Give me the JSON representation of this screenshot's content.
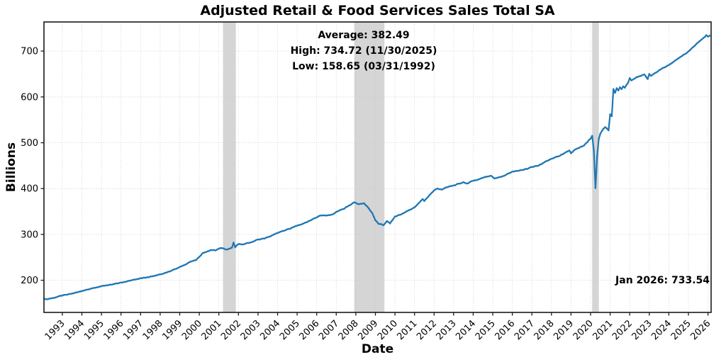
{
  "chart_data": {
    "type": "line",
    "title": "Adjusted Retail & Food Services Sales Total SA",
    "xlabel": "Date",
    "ylabel": "Billions",
    "x_ticks": [
      1993,
      1994,
      1995,
      1996,
      1997,
      1998,
      1999,
      2000,
      2001,
      2002,
      2003,
      2004,
      2005,
      2006,
      2007,
      2008,
      2009,
      2010,
      2011,
      2012,
      2013,
      2014,
      2015,
      2016,
      2017,
      2018,
      2019,
      2020,
      2021,
      2022,
      2023,
      2024,
      2025,
      2026
    ],
    "y_ticks": [
      200,
      300,
      400,
      500,
      600,
      700
    ],
    "xlim": [
      1992.06,
      2026.16
    ],
    "ylim": [
      129.8,
      763.5
    ],
    "grid": {
      "style": "dotted",
      "color": "#c9c9c9"
    },
    "line_color": "#1f77b4",
    "band_color": "#d5d5d5",
    "spine_color": "#1a1a1a",
    "recession_bands": [
      [
        2001.21,
        2001.87
      ],
      [
        2007.92,
        2009.46
      ],
      [
        2020.08,
        2020.42
      ]
    ],
    "series": [
      {
        "name": "Adjusted Retail & Food Services Sales Total SA (billions, monthly)",
        "sampling": "monthly",
        "jitter": 0.8,
        "anchor_points": [
          [
            1992.08,
            159.6
          ],
          [
            1992.25,
            158.65
          ],
          [
            1992.33,
            159.8
          ],
          [
            1992.5,
            161.2
          ],
          [
            1992.75,
            163.8
          ],
          [
            1993.0,
            166.5
          ],
          [
            1993.25,
            168.5
          ],
          [
            1993.5,
            171
          ],
          [
            1993.75,
            173.5
          ],
          [
            1994.0,
            176.5
          ],
          [
            1994.25,
            179.5
          ],
          [
            1994.5,
            182
          ],
          [
            1994.75,
            184.5
          ],
          [
            1995.0,
            187
          ],
          [
            1995.3,
            189
          ],
          [
            1995.6,
            191
          ],
          [
            1996.0,
            195
          ],
          [
            1996.3,
            198
          ],
          [
            1996.6,
            200.5
          ],
          [
            1997.0,
            204.5
          ],
          [
            1997.3,
            206.5
          ],
          [
            1997.6,
            208.5
          ],
          [
            1998.0,
            213
          ],
          [
            1998.3,
            217
          ],
          [
            1998.6,
            221
          ],
          [
            1999.0,
            229
          ],
          [
            1999.3,
            235
          ],
          [
            1999.6,
            241
          ],
          [
            1999.8,
            244
          ],
          [
            2000.0,
            251
          ],
          [
            2000.2,
            259
          ],
          [
            2000.4,
            263
          ],
          [
            2000.6,
            266
          ],
          [
            2000.8,
            265
          ],
          [
            2001.0,
            269
          ],
          [
            2001.2,
            270
          ],
          [
            2001.45,
            267
          ],
          [
            2001.7,
            271
          ],
          [
            2001.79,
            282
          ],
          [
            2001.87,
            272
          ],
          [
            2002.0,
            279
          ],
          [
            2002.2,
            278
          ],
          [
            2002.4,
            281
          ],
          [
            2002.7,
            283
          ],
          [
            2003.0,
            289
          ],
          [
            2003.3,
            291
          ],
          [
            2003.6,
            295
          ],
          [
            2004.0,
            303
          ],
          [
            2004.3,
            308
          ],
          [
            2004.6,
            312
          ],
          [
            2005.0,
            319
          ],
          [
            2005.3,
            324
          ],
          [
            2005.6,
            329
          ],
          [
            2006.0,
            337
          ],
          [
            2006.2,
            341
          ],
          [
            2006.5,
            341
          ],
          [
            2006.8,
            344
          ],
          [
            2007.0,
            349
          ],
          [
            2007.3,
            355
          ],
          [
            2007.6,
            361
          ],
          [
            2007.95,
            370
          ],
          [
            2008.2,
            366
          ],
          [
            2008.45,
            368
          ],
          [
            2008.6,
            361
          ],
          [
            2008.8,
            347
          ],
          [
            2009.0,
            331
          ],
          [
            2009.2,
            323
          ],
          [
            2009.42,
            320
          ],
          [
            2009.58,
            329
          ],
          [
            2009.75,
            324
          ],
          [
            2010.0,
            339
          ],
          [
            2010.3,
            344
          ],
          [
            2010.6,
            350
          ],
          [
            2011.0,
            359
          ],
          [
            2011.2,
            366
          ],
          [
            2011.4,
            377
          ],
          [
            2011.5,
            373
          ],
          [
            2011.75,
            385
          ],
          [
            2012.0,
            396
          ],
          [
            2012.2,
            400
          ],
          [
            2012.4,
            398
          ],
          [
            2012.7,
            403
          ],
          [
            2013.0,
            407
          ],
          [
            2013.3,
            411
          ],
          [
            2013.5,
            414
          ],
          [
            2013.65,
            411
          ],
          [
            2014.0,
            417
          ],
          [
            2014.3,
            421
          ],
          [
            2014.6,
            425
          ],
          [
            2014.9,
            428
          ],
          [
            2015.1,
            422
          ],
          [
            2015.3,
            425
          ],
          [
            2015.6,
            428
          ],
          [
            2016.0,
            437
          ],
          [
            2016.3,
            439
          ],
          [
            2016.6,
            441
          ],
          [
            2017.0,
            447
          ],
          [
            2017.3,
            450
          ],
          [
            2017.6,
            456
          ],
          [
            2018.0,
            465
          ],
          [
            2018.3,
            470
          ],
          [
            2018.6,
            475
          ],
          [
            2018.9,
            483
          ],
          [
            2019.0,
            477
          ],
          [
            2019.15,
            484
          ],
          [
            2019.4,
            489
          ],
          [
            2019.7,
            494
          ],
          [
            2020.0,
            509
          ],
          [
            2020.12,
            515
          ],
          [
            2020.2,
            483
          ],
          [
            2020.29,
            401
          ],
          [
            2020.37,
            470
          ],
          [
            2020.45,
            508
          ],
          [
            2020.54,
            520
          ],
          [
            2020.62,
            526
          ],
          [
            2020.7,
            531
          ],
          [
            2020.79,
            534
          ],
          [
            2020.87,
            531
          ],
          [
            2020.95,
            527
          ],
          [
            2021.04,
            562
          ],
          [
            2021.12,
            558
          ],
          [
            2021.2,
            617
          ],
          [
            2021.29,
            609
          ],
          [
            2021.37,
            619
          ],
          [
            2021.45,
            614
          ],
          [
            2021.54,
            621
          ],
          [
            2021.62,
            617
          ],
          [
            2021.7,
            623
          ],
          [
            2021.79,
            620
          ],
          [
            2021.87,
            626
          ],
          [
            2021.95,
            631
          ],
          [
            2022.04,
            641
          ],
          [
            2022.12,
            636
          ],
          [
            2022.29,
            640
          ],
          [
            2022.45,
            644
          ],
          [
            2022.62,
            646
          ],
          [
            2022.79,
            649
          ],
          [
            2022.87,
            644
          ],
          [
            2022.95,
            639
          ],
          [
            2023.04,
            650
          ],
          [
            2023.12,
            646
          ],
          [
            2023.29,
            651
          ],
          [
            2023.45,
            655
          ],
          [
            2023.62,
            660
          ],
          [
            2023.79,
            664
          ],
          [
            2023.95,
            668
          ],
          [
            2024.12,
            672
          ],
          [
            2024.29,
            677
          ],
          [
            2024.45,
            682
          ],
          [
            2024.62,
            687
          ],
          [
            2024.79,
            692
          ],
          [
            2024.95,
            696
          ],
          [
            2025.12,
            702
          ],
          [
            2025.29,
            709
          ],
          [
            2025.45,
            716
          ],
          [
            2025.62,
            722
          ],
          [
            2025.79,
            728
          ],
          [
            2025.92,
            734.72
          ],
          [
            2026.0,
            731.5
          ],
          [
            2026.08,
            733.54
          ]
        ]
      }
    ],
    "annotations": {
      "stats_lines": [
        "Average: 382.49",
        "High: 734.72 (11/30/2025)",
        "Low: 158.65 (03/31/1992)"
      ],
      "last_point": "Jan 2026: 733.54"
    }
  }
}
